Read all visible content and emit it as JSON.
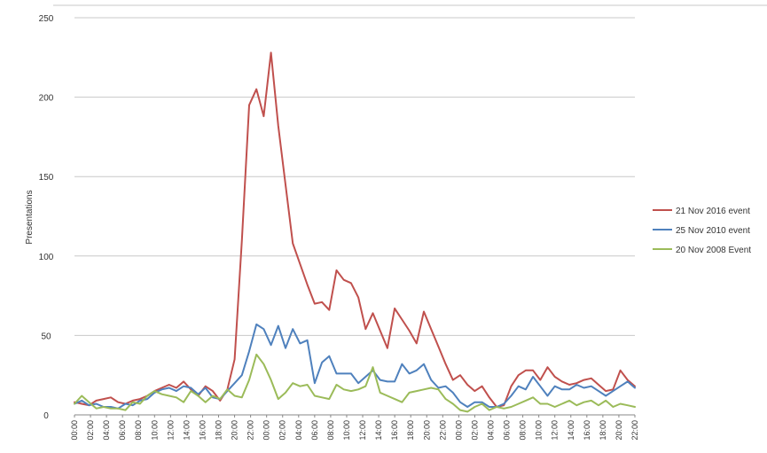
{
  "chart_data": {
    "type": "line",
    "title": "",
    "xlabel": "",
    "ylabel": "Presentations",
    "ylim": [
      0,
      250
    ],
    "yticks": [
      0,
      50,
      100,
      150,
      200,
      250
    ],
    "grid": true,
    "legend_position": "right",
    "x_tick_labels": [
      "00:00",
      "02:00",
      "04:00",
      "06:00",
      "08:00",
      "10:00",
      "12:00",
      "14:00",
      "16:00",
      "18:00",
      "20:00",
      "22:00",
      "00:00",
      "02:00",
      "04:00",
      "06:00",
      "08:00",
      "10:00",
      "12:00",
      "14:00",
      "16:00",
      "18:00",
      "20:00",
      "22:00",
      "00:00",
      "02:00",
      "04:00",
      "06:00",
      "08:00",
      "10:00",
      "12:00",
      "14:00",
      "16:00",
      "18:00",
      "20:00",
      "22:00"
    ],
    "series": [
      {
        "name": "21 Nov 2016 event",
        "color": "#c0504d",
        "values": [
          8,
          7,
          6,
          9,
          10,
          11,
          8,
          7,
          9,
          10,
          12,
          15,
          17,
          19,
          17,
          21,
          16,
          12,
          18,
          15,
          9,
          16,
          35,
          110,
          195,
          205,
          188,
          228,
          182,
          145,
          108,
          95,
          82,
          70,
          71,
          66,
          91,
          85,
          83,
          74,
          54,
          64,
          53,
          42,
          67,
          60,
          53,
          45,
          65,
          54,
          43,
          32,
          22,
          25,
          19,
          15,
          18,
          11,
          5,
          6,
          18,
          25,
          28,
          28,
          22,
          30,
          24,
          21,
          19,
          20,
          22,
          23,
          19,
          15,
          16,
          28,
          22,
          18
        ]
      },
      {
        "name": "25 Nov 2010 event",
        "color": "#4f81bd",
        "values": [
          7,
          9,
          6,
          7,
          5,
          5,
          4,
          7,
          6,
          9,
          10,
          14,
          16,
          17,
          15,
          18,
          17,
          13,
          17,
          11,
          10,
          15,
          20,
          25,
          40,
          57,
          54,
          44,
          56,
          42,
          54,
          45,
          47,
          20,
          33,
          37,
          26,
          26,
          26,
          20,
          24,
          28,
          22,
          21,
          21,
          32,
          26,
          28,
          32,
          22,
          17,
          18,
          14,
          8,
          5,
          8,
          8,
          5,
          5,
          7,
          12,
          18,
          16,
          24,
          18,
          12,
          18,
          16,
          16,
          19,
          17,
          18,
          15,
          12,
          15,
          18,
          21,
          17
        ]
      },
      {
        "name": "20 Nov 2008 Event",
        "color": "#9bbb59",
        "values": [
          7,
          12,
          8,
          4,
          5,
          4,
          4,
          3,
          8,
          7,
          12,
          15,
          13,
          12,
          11,
          8,
          15,
          12,
          8,
          12,
          10,
          16,
          12,
          11,
          22,
          38,
          32,
          22,
          10,
          14,
          20,
          18,
          19,
          12,
          11,
          10,
          19,
          16,
          15,
          16,
          18,
          30,
          14,
          12,
          10,
          8,
          14,
          15,
          16,
          17,
          16,
          10,
          7,
          3,
          2,
          5,
          7,
          3,
          5,
          4,
          5,
          7,
          9,
          11,
          7,
          7,
          5,
          7,
          9,
          6,
          8,
          9,
          6,
          9,
          5,
          7,
          6,
          5
        ]
      }
    ]
  }
}
